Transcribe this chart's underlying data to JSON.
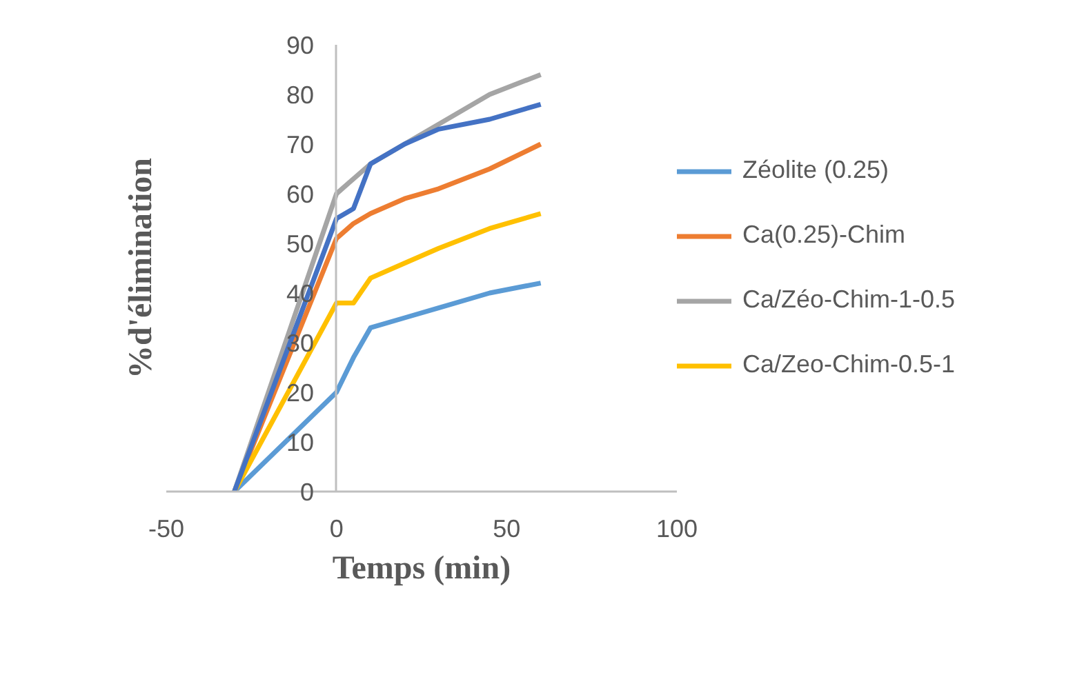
{
  "chart_data": {
    "type": "line",
    "xlabel": "Temps (min)",
    "ylabel": "%d'élimination",
    "x": [
      -30,
      0,
      5,
      10,
      20,
      30,
      45,
      60
    ],
    "series": [
      {
        "name": "Zéolite (0.25)",
        "color": "#5b9bd5",
        "values": [
          0,
          20,
          27,
          33,
          35,
          37,
          40,
          42
        ]
      },
      {
        "name": "Ca(0.25)-Chim",
        "color": "#ed7d31",
        "values": [
          0,
          51,
          54,
          56,
          59,
          61,
          65,
          70
        ]
      },
      {
        "name": "Ca/Zéo-Chim-1-0.5",
        "color": "#a5a5a5",
        "values": [
          0,
          60,
          63,
          66,
          70,
          74,
          80,
          84
        ]
      },
      {
        "name": "Ca/Zeo-Chim-0.5-1",
        "color": "#ffc000",
        "values": [
          0,
          38,
          38,
          43,
          46,
          49,
          53,
          56
        ]
      },
      {
        "color": "#4472c4",
        "values": [
          0,
          55,
          57,
          66,
          70,
          73,
          75,
          78
        ]
      }
    ],
    "xlim": [
      -50,
      100
    ],
    "xticks": [
      -50,
      0,
      50,
      100
    ],
    "ylim": [
      0,
      90
    ],
    "yticks": [
      0,
      10,
      20,
      30,
      40,
      50,
      60,
      70,
      80,
      90
    ],
    "grid": false,
    "legend": "right",
    "marker": "none",
    "line_style": "solid"
  }
}
